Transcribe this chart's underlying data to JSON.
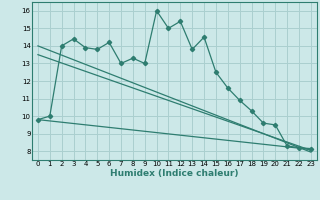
{
  "xlabel": "Humidex (Indice chaleur)",
  "bg_color": "#cce8e8",
  "grid_color": "#aacfcf",
  "line_color": "#2e7d70",
  "spine_color": "#2e7d70",
  "xlim": [
    -0.5,
    23.5
  ],
  "ylim": [
    7.5,
    16.5
  ],
  "xticks": [
    0,
    1,
    2,
    3,
    4,
    5,
    6,
    7,
    8,
    9,
    10,
    11,
    12,
    13,
    14,
    15,
    16,
    17,
    18,
    19,
    20,
    21,
    22,
    23
  ],
  "yticks": [
    8,
    9,
    10,
    11,
    12,
    13,
    14,
    15,
    16
  ],
  "main_x": [
    0,
    1,
    2,
    3,
    4,
    5,
    6,
    7,
    8,
    9,
    10,
    11,
    12,
    13,
    14,
    15,
    16,
    17,
    18,
    19,
    20,
    21,
    22,
    23
  ],
  "main_y": [
    9.8,
    10.0,
    14.0,
    14.4,
    13.9,
    13.8,
    14.2,
    13.0,
    13.3,
    13.0,
    16.0,
    15.0,
    15.4,
    13.8,
    14.5,
    12.5,
    11.6,
    10.9,
    10.3,
    9.6,
    9.5,
    8.3,
    8.2,
    8.15
  ],
  "line1_x": [
    0,
    23
  ],
  "line1_y": [
    9.8,
    8.1
  ],
  "line2_x": [
    0,
    23
  ],
  "line2_y": [
    13.5,
    8.05
  ],
  "line3_x": [
    0,
    23
  ],
  "line3_y": [
    14.0,
    7.95
  ],
  "tick_fontsize": 5.0,
  "xlabel_fontsize": 6.5,
  "xlabel_fontweight": "bold"
}
